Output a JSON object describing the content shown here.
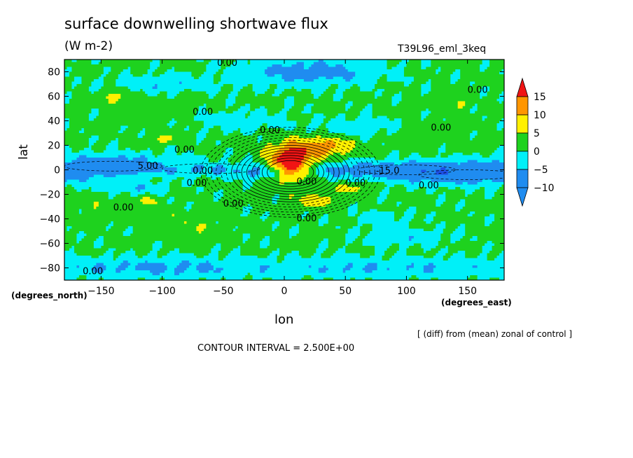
{
  "title": "surface downwelling shortwave flux",
  "units": "(W m-2)",
  "run_label": "T39L96_eml_3keq",
  "chart_data": {
    "type": "heatmap",
    "xlabel": "lon",
    "ylabel": "lat",
    "x_units": "(degrees_east)",
    "y_units": "(degrees_north)",
    "xlim": [
      -180,
      180
    ],
    "ylim": [
      -90,
      90
    ],
    "x_ticks": [
      -150,
      -100,
      -50,
      0,
      50,
      100,
      150
    ],
    "y_ticks": [
      -80,
      -60,
      -40,
      -20,
      0,
      20,
      40,
      60,
      80
    ],
    "contour_interval": 2.5,
    "colorbar": {
      "levels": [
        -10,
        -5,
        0,
        5,
        10,
        15
      ],
      "colors": [
        "#1f8cf0",
        "#00f0f8",
        "#1ed21e",
        "#fff000",
        "#ff9600",
        "#f01414"
      ],
      "band_colors": [
        "#1f8cf0",
        "#00f0f8",
        "#1ed21e",
        "#fff000",
        "#ff9600"
      ],
      "low_color": "#1f8cf0",
      "high_color": "#f01414",
      "dark_band_color": "#1e50e6"
    },
    "contour_labels": [
      "0.00",
      "0.00",
      "0.00",
      "0.00",
      "0.00",
      "0.00",
      "5.00",
      "0.00",
      "0.00",
      "0.00",
      "0.00",
      "0.00",
      "0.00",
      "0.00",
      "-15.0",
      "0.00",
      "0.00"
    ],
    "features": [
      {
        "lat": 5,
        "lon": 5,
        "value": 15
      },
      {
        "lat": 18,
        "lon": 25,
        "value": 10
      },
      {
        "lat": -25,
        "lon": 25,
        "value": 5
      },
      {
        "lat": -15,
        "lon": 55,
        "value": 5
      },
      {
        "lat": 0,
        "lon": 100,
        "value": -10
      },
      {
        "lat": 2,
        "lon": -140,
        "value": -10
      },
      {
        "lat": 0,
        "lon": -60,
        "value": -5
      },
      {
        "lat": 80,
        "lon": 20,
        "value": -5
      },
      {
        "lat": -80,
        "lon": -100,
        "value": -5
      },
      {
        "lat": 60,
        "lon": -140,
        "value": 5
      },
      {
        "lat": 55,
        "lon": 140,
        "value": 5
      }
    ]
  },
  "footer": {
    "note": "[ (diff) from (mean) zonal of control ]",
    "contour_interval_text": "CONTOUR INTERVAL = 2.500E+00"
  }
}
